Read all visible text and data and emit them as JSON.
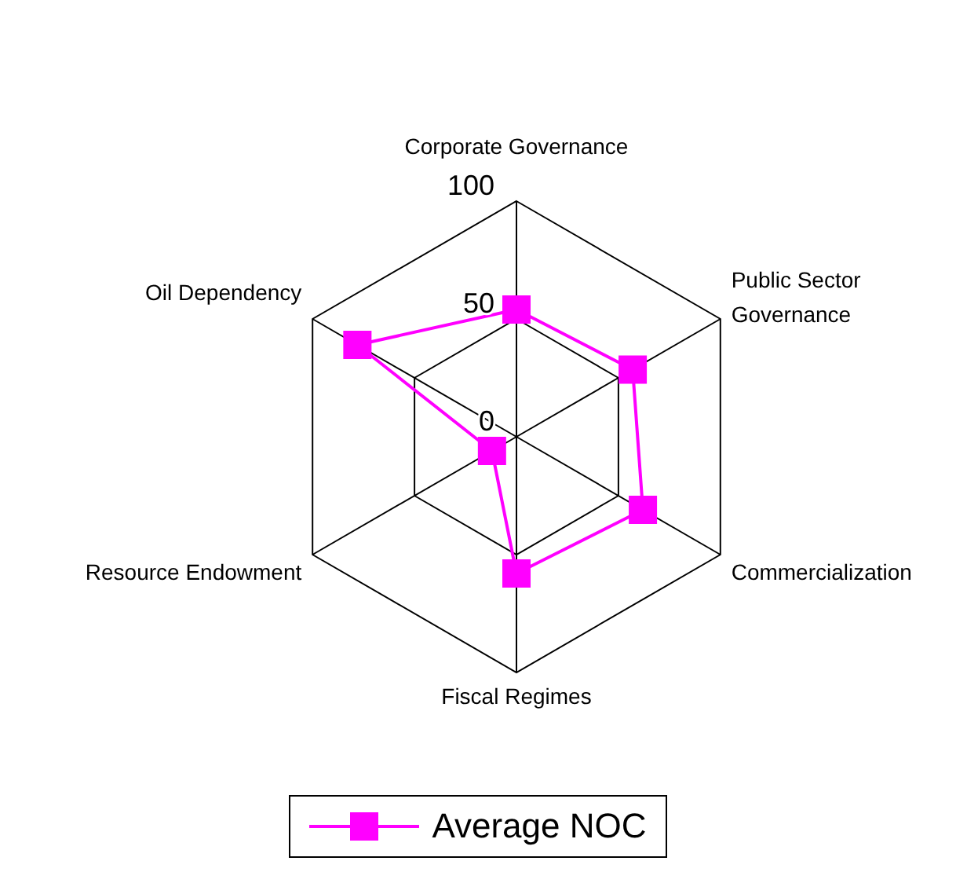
{
  "chart_data": {
    "type": "radar",
    "categories": [
      "Corporate Governance",
      "Public Sector Governance",
      "Commercialization",
      "Fiscal Regimes",
      "Resource Endowment",
      "Oil Dependency"
    ],
    "series": [
      {
        "name": "Average NOC",
        "color": "#ff00ff",
        "values": [
          54,
          57,
          62,
          58,
          12,
          78
        ]
      }
    ],
    "ylim": [
      0,
      100
    ],
    "yticks": [
      0,
      50,
      100
    ],
    "grid": true,
    "legend": "bottom",
    "marker": "square",
    "line_style": "solid"
  }
}
